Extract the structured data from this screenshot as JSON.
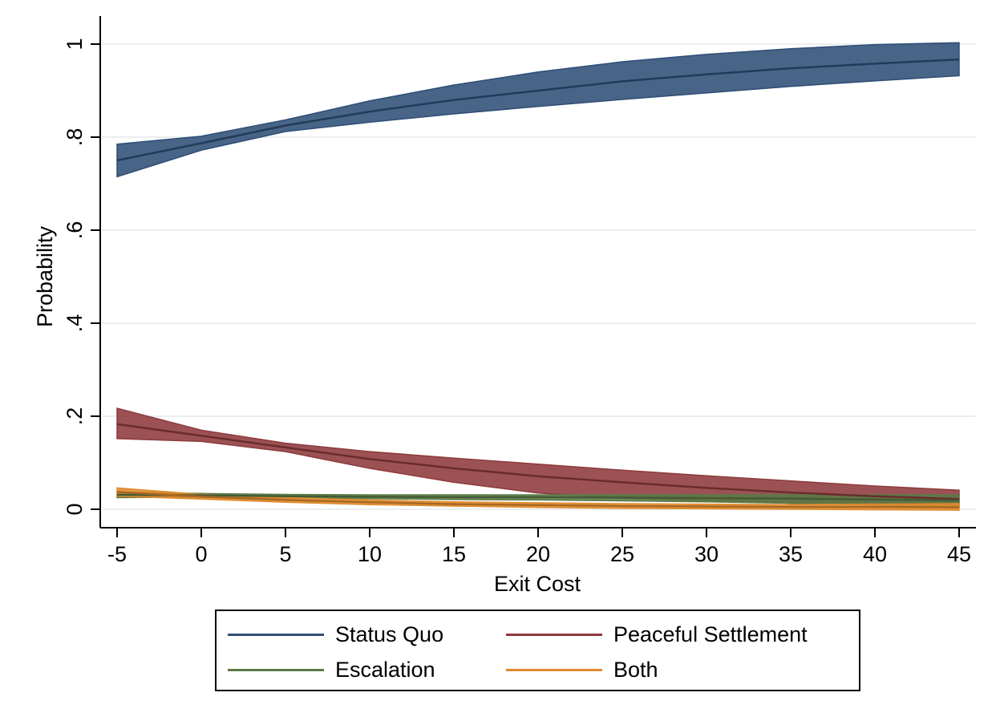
{
  "chart_data": {
    "type": "line",
    "xlabel": "Exit Cost",
    "ylabel": "Probability",
    "xlim": [
      -5,
      45
    ],
    "ylim": [
      0,
      1
    ],
    "x_ticks": [
      "-5",
      "0",
      "5",
      "10",
      "15",
      "20",
      "25",
      "30",
      "35",
      "40",
      "45"
    ],
    "y_ticks": [
      "0",
      ".2",
      ".4",
      ".6",
      ".8",
      "1"
    ],
    "grid": "horizontal",
    "legend_position": "bottom",
    "x": [
      -5,
      0,
      5,
      10,
      15,
      20,
      25,
      30,
      35,
      40,
      45
    ],
    "series": [
      {
        "name": "Status Quo",
        "color": "#2f4e76",
        "values": [
          0.75,
          0.787,
          0.825,
          0.855,
          0.88,
          0.9,
          0.92,
          0.935,
          0.948,
          0.958,
          0.967
        ],
        "lower": [
          0.715,
          0.772,
          0.812,
          0.832,
          0.85,
          0.866,
          0.881,
          0.895,
          0.909,
          0.921,
          0.932
        ],
        "upper": [
          0.785,
          0.802,
          0.837,
          0.878,
          0.912,
          0.94,
          0.962,
          0.978,
          0.99,
          0.999,
          1.003
        ]
      },
      {
        "name": "Peaceful Settlement",
        "color": "#8e3a3c",
        "values": [
          0.183,
          0.158,
          0.133,
          0.108,
          0.088,
          0.071,
          0.058,
          0.046,
          0.036,
          0.028,
          0.022
        ],
        "lower": [
          0.152,
          0.146,
          0.124,
          0.088,
          0.058,
          0.035,
          0.024,
          0.018,
          0.013,
          0.009,
          0.006
        ],
        "upper": [
          0.217,
          0.17,
          0.142,
          0.124,
          0.11,
          0.097,
          0.084,
          0.072,
          0.061,
          0.05,
          0.041
        ]
      },
      {
        "name": "Escalation",
        "color": "#5a7a46",
        "values": [
          0.031,
          0.03,
          0.028,
          0.027,
          0.026,
          0.026,
          0.025,
          0.024,
          0.023,
          0.021,
          0.019
        ],
        "lower": [
          0.025,
          0.026,
          0.024,
          0.023,
          0.021,
          0.02,
          0.018,
          0.016,
          0.013,
          0.009,
          0.005
        ],
        "upper": [
          0.037,
          0.034,
          0.032,
          0.031,
          0.031,
          0.031,
          0.031,
          0.031,
          0.031,
          0.031,
          0.031
        ]
      },
      {
        "name": "Both",
        "color": "#e08a2c",
        "values": [
          0.037,
          0.027,
          0.02,
          0.015,
          0.011,
          0.009,
          0.007,
          0.006,
          0.005,
          0.005,
          0.004
        ],
        "lower": [
          0.028,
          0.022,
          0.015,
          0.01,
          0.007,
          0.004,
          0.002,
          0.001,
          0.0,
          -0.001,
          -0.002
        ],
        "upper": [
          0.046,
          0.032,
          0.025,
          0.02,
          0.016,
          0.014,
          0.012,
          0.011,
          0.01,
          0.011,
          0.012
        ]
      }
    ]
  }
}
